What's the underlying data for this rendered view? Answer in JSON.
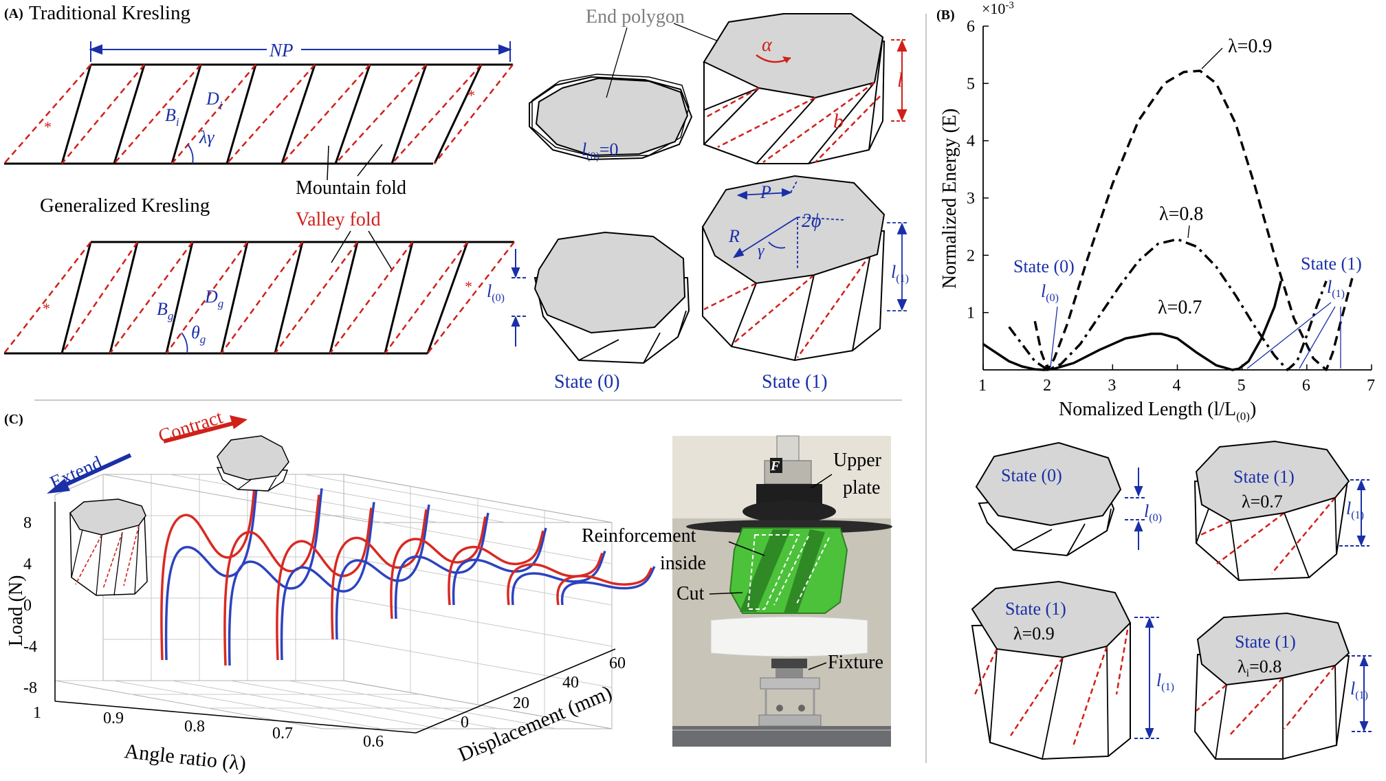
{
  "panel_a": {
    "tag": "(A)",
    "title_traditional": "Traditional Kresling",
    "title_generalized": "Generalized Kresling",
    "np": "NP",
    "bi": "B",
    "bi_sub": "i",
    "di": "D",
    "di_sub": "i",
    "lambda_gamma": "λγ",
    "mountain_fold": "Mountain fold",
    "valley_fold": "Valley fold",
    "star": "*",
    "bg": "B",
    "bg_sub": "g",
    "dg": "D",
    "dg_sub": "g",
    "theta_g": "θ",
    "theta_sub": "g",
    "end_polygon": "End polygon",
    "l0_eq": "=0",
    "l_base": "l",
    "sub0": "(0)",
    "sub1": "(1)",
    "alpha": "α",
    "l": "l",
    "b": "b",
    "P": "P",
    "R": "R",
    "gamma": "γ",
    "two_phi": "2ϕ",
    "state0": "State (0)",
    "state1": "State (1)"
  },
  "panel_b": {
    "tag": "(B)",
    "exponent": "×10",
    "exponent_power": "-3",
    "y_label": "Normalized Energy (E)",
    "x_label": "Nomalized Length (l/L",
    "x_label_sub": "(0)",
    "x_label_close": ")",
    "lam09": "λ=0.9",
    "lam08": "λ=0.8",
    "lam07": "λ=0.7",
    "state0": "State (0)",
    "state1": "State (1)",
    "l_base": "l",
    "sub0": "(0)",
    "sub1": "(1)",
    "inset_state0": "State (0)",
    "inset_state1": "State (1)",
    "inset_l07": "λ=0.7",
    "inset_l09": "λ=0.9",
    "inset_l08": "λ",
    "inset_l08_sub": "i",
    "inset_l08_val": "=0.8"
  },
  "panel_c": {
    "tag": "(C)",
    "extend": "Extend",
    "contract": "Contract",
    "y_label": "Load (N)",
    "y_ticks": [
      "8",
      "4",
      "0",
      "-4",
      "-8"
    ],
    "x_label": "Angle ratio (λ)",
    "x_ticks": [
      "1",
      "0.9",
      "0.8",
      "0.7",
      "0.6"
    ],
    "z_label": "Displacement (mm)",
    "z_ticks": [
      "0",
      "20",
      "40",
      "60"
    ],
    "photo_F": "F",
    "upper_plate": "Upper plate",
    "upper_plate_1": "Upper",
    "upper_plate_2": "plate",
    "reinforcement_1": "Reinforcement",
    "reinforcement_2": "inside",
    "cut": "Cut",
    "fixture": "Fixture"
  },
  "chart_data": {
    "type": "line",
    "xlabel": "Nomalized Length (l/L(0))",
    "ylabel": "Normalized Energy (E)",
    "y_scale_note": "×10^-3",
    "xlim": [
      1,
      7
    ],
    "ylim": [
      0,
      6
    ],
    "x_ticks": [
      1,
      2,
      3,
      4,
      5,
      6,
      7
    ],
    "y_ticks": [
      1,
      2,
      3,
      4,
      5,
      6
    ],
    "series": [
      {
        "name": "λ=0.7",
        "style": "solid",
        "x": [
          1.0,
          1.2,
          1.4,
          1.6,
          1.8,
          1.95,
          2.1,
          2.4,
          2.8,
          3.2,
          3.6,
          3.75,
          4.0,
          4.3,
          4.6,
          4.85,
          4.95,
          5.1,
          5.3,
          5.5,
          5.6
        ],
        "y": [
          0.45,
          0.3,
          0.15,
          0.06,
          0.01,
          0.0,
          0.02,
          0.12,
          0.35,
          0.55,
          0.63,
          0.63,
          0.55,
          0.3,
          0.08,
          0.0,
          0.02,
          0.15,
          0.55,
          1.1,
          1.55
        ]
      },
      {
        "name": "λ=0.8",
        "style": "dash-dot",
        "x": [
          1.4,
          1.6,
          1.8,
          2.0,
          2.2,
          2.5,
          2.8,
          3.1,
          3.4,
          3.7,
          4.0,
          4.3,
          4.6,
          4.9,
          5.2,
          5.5,
          5.7,
          5.85,
          6.0,
          6.15,
          6.3
        ],
        "y": [
          0.75,
          0.45,
          0.15,
          0.0,
          0.1,
          0.45,
          0.95,
          1.45,
          1.9,
          2.2,
          2.28,
          2.15,
          1.8,
          1.3,
          0.75,
          0.25,
          0.0,
          0.15,
          0.6,
          1.1,
          1.55
        ]
      },
      {
        "name": "λ=0.9",
        "style": "dashed",
        "x": [
          1.8,
          1.9,
          2.0,
          2.1,
          2.3,
          2.6,
          3.0,
          3.4,
          3.8,
          4.1,
          4.35,
          4.6,
          4.9,
          5.2,
          5.5,
          5.8,
          6.1,
          6.3,
          6.4,
          6.55,
          6.7
        ],
        "y": [
          0.85,
          0.3,
          0.0,
          0.2,
          0.8,
          1.9,
          3.25,
          4.35,
          5.0,
          5.2,
          5.22,
          5.0,
          4.3,
          3.2,
          2.0,
          0.9,
          0.2,
          0.0,
          0.3,
          0.95,
          1.6
        ]
      }
    ]
  }
}
